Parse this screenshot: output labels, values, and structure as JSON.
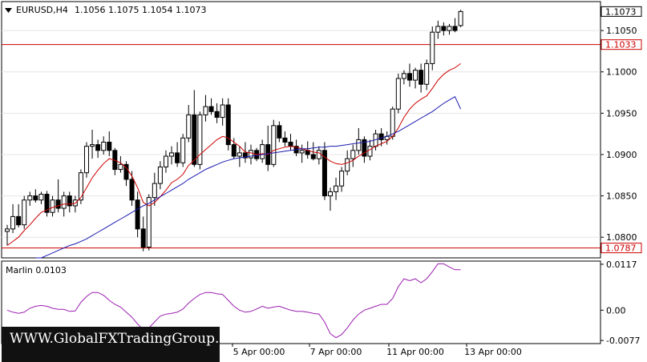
{
  "header": {
    "symbol": "EURUSD,H4",
    "ohlc": "1.1056 1.1075 1.1054 1.1073",
    "menu_icon": "triangle-down-icon"
  },
  "indicator": {
    "label": "Marlin 0.0103"
  },
  "watermark": {
    "text": "WWW.GlobalFXTradingGroup.Com"
  },
  "colors": {
    "background": "#ffffff",
    "candle": "#000000",
    "fast_ma": "#cc0000",
    "slow_ma": "#1a1ab0",
    "oscillator": "#9b1fb0",
    "level_line": "#cc0000",
    "grid": "#e4e4e4"
  },
  "chart_data": [
    {
      "type": "candlestick",
      "title": "EURUSD,H4",
      "ylim": [
        1.0775,
        1.1085
      ],
      "y_ticks": [
        "1.1050",
        "1.1000",
        "1.0950",
        "1.0900",
        "1.0850",
        "1.0800"
      ],
      "x_ticks": [
        "5 Apr 00:00",
        "7 Apr 00:00",
        "11 Apr 00:00",
        "13 Apr 00:00"
      ],
      "price_label": "1.1073",
      "levels": [
        {
          "value": 1.1033,
          "label": "1.1033"
        },
        {
          "value": 1.0787,
          "label": "1.0787"
        }
      ],
      "candles": [
        [
          1.0807,
          1.0815,
          1.079,
          1.081
        ],
        [
          1.081,
          1.084,
          1.0805,
          1.0825
        ],
        [
          1.0825,
          1.084,
          1.0812,
          1.0815
        ],
        [
          1.0815,
          1.085,
          1.081,
          1.0845
        ],
        [
          1.0845,
          1.0855,
          1.0838,
          1.085
        ],
        [
          1.085,
          1.0858,
          1.0842,
          1.0845
        ],
        [
          1.0845,
          1.0855,
          1.084,
          1.0852
        ],
        [
          1.0852,
          1.0856,
          1.0825,
          1.083
        ],
        [
          1.083,
          1.085,
          1.0825,
          1.0845
        ],
        [
          1.0845,
          1.087,
          1.083,
          1.0835
        ],
        [
          1.0835,
          1.0855,
          1.0825,
          1.085
        ],
        [
          1.085,
          1.0855,
          1.083,
          1.0838
        ],
        [
          1.0838,
          1.085,
          1.083,
          1.0845
        ],
        [
          1.0845,
          1.0882,
          1.084,
          1.0878
        ],
        [
          1.0878,
          1.0915,
          1.0872,
          1.091
        ],
        [
          1.091,
          1.093,
          1.0895,
          1.0912
        ],
        [
          1.0912,
          1.0918,
          1.0896,
          1.0905
        ],
        [
          1.0905,
          1.0922,
          1.09,
          1.0915
        ],
        [
          1.0915,
          1.0928,
          1.0898,
          1.0905
        ],
        [
          1.0905,
          1.0908,
          1.0875,
          1.0882
        ],
        [
          1.0882,
          1.0898,
          1.0878,
          1.0888
        ],
        [
          1.0888,
          1.0892,
          1.0862,
          1.087
        ],
        [
          1.087,
          1.088,
          1.0838,
          1.0845
        ],
        [
          1.0845,
          1.0855,
          1.08,
          1.081
        ],
        [
          1.081,
          1.0825,
          1.0783,
          1.0788
        ],
        [
          1.0788,
          1.0852,
          1.0784,
          1.0848
        ],
        [
          1.0848,
          1.0878,
          1.0838,
          1.0865
        ],
        [
          1.0865,
          1.0892,
          1.0858,
          1.0885
        ],
        [
          1.0885,
          1.0905,
          1.0878,
          1.0898
        ],
        [
          1.0898,
          1.091,
          1.0888,
          1.0902
        ],
        [
          1.0902,
          1.0915,
          1.0885,
          1.089
        ],
        [
          1.089,
          1.0925,
          1.0885,
          1.092
        ],
        [
          1.092,
          1.096,
          1.0915,
          1.0948
        ],
        [
          1.0948,
          1.0978,
          1.0885,
          1.0888
        ],
        [
          1.0888,
          1.0952,
          1.0882,
          1.0948
        ],
        [
          1.0948,
          1.0972,
          1.094,
          1.0958
        ],
        [
          1.0958,
          1.0968,
          1.0948,
          1.0952
        ],
        [
          1.0952,
          1.0962,
          1.0938,
          1.0945
        ],
        [
          1.0945,
          1.0968,
          1.0935,
          1.096
        ],
        [
          1.096,
          1.0968,
          1.0905,
          1.0912
        ],
        [
          1.0912,
          1.092,
          1.0895,
          1.0898
        ],
        [
          1.0898,
          1.091,
          1.0885,
          1.0902
        ],
        [
          1.0902,
          1.0915,
          1.089,
          1.0896
        ],
        [
          1.0896,
          1.0912,
          1.0888,
          1.0905
        ],
        [
          1.0905,
          1.0908,
          1.0892,
          1.0895
        ],
        [
          1.0895,
          1.0918,
          1.089,
          1.0912
        ],
        [
          1.0912,
          1.0935,
          1.088,
          1.0888
        ],
        [
          1.0888,
          1.0942,
          1.0885,
          1.0935
        ],
        [
          1.0935,
          1.094,
          1.0915,
          1.092
        ],
        [
          1.092,
          1.0928,
          1.091,
          1.0915
        ],
        [
          1.0915,
          1.0925,
          1.0905,
          1.091
        ],
        [
          1.091,
          1.0918,
          1.0898,
          1.0902
        ],
        [
          1.0902,
          1.0912,
          1.089,
          1.0905
        ],
        [
          1.0905,
          1.0916,
          1.0895,
          1.09
        ],
        [
          1.09,
          1.0915,
          1.0893,
          1.0895
        ],
        [
          1.0895,
          1.091,
          1.0888,
          1.0905
        ],
        [
          1.0905,
          1.0915,
          1.0845,
          1.085
        ],
        [
          1.085,
          1.086,
          1.0832,
          1.0855
        ],
        [
          1.0855,
          1.0872,
          1.0845,
          1.0862
        ],
        [
          1.0862,
          1.0885,
          1.0855,
          1.088
        ],
        [
          1.088,
          1.0905,
          1.0875,
          1.0895
        ],
        [
          1.0895,
          1.0912,
          1.0885,
          1.0905
        ],
        [
          1.0905,
          1.0932,
          1.09,
          1.0918
        ],
        [
          1.0918,
          1.0922,
          1.089,
          1.0898
        ],
        [
          1.0898,
          1.0918,
          1.0893,
          1.091
        ],
        [
          1.091,
          1.093,
          1.0905,
          1.0925
        ],
        [
          1.0925,
          1.0932,
          1.091,
          1.0918
        ],
        [
          1.0918,
          1.0928,
          1.0912,
          1.0922
        ],
        [
          1.0922,
          1.0958,
          1.0918,
          1.0955
        ],
        [
          1.0955,
          1.0998,
          1.095,
          1.0992
        ],
        [
          1.0992,
          1.1002,
          1.0985,
          1.0998
        ],
        [
          1.0998,
          1.101,
          1.0982,
          1.099
        ],
        [
          1.099,
          1.1005,
          1.098,
          1.1002
        ],
        [
          1.1002,
          1.101,
          1.0975,
          1.0985
        ],
        [
          1.0985,
          1.1015,
          1.0978,
          1.101
        ],
        [
          1.101,
          1.1055,
          1.1002,
          1.1048
        ],
        [
          1.1048,
          1.1062,
          1.104,
          1.1055
        ],
        [
          1.1055,
          1.106,
          1.1044,
          1.105
        ],
        [
          1.105,
          1.1058,
          1.1045,
          1.1055
        ],
        [
          1.1055,
          1.1065,
          1.1048,
          1.105
        ],
        [
          1.1056,
          1.1075,
          1.1054,
          1.1073
        ]
      ],
      "series": [
        {
          "name": "",
          "kind": "fast_ma",
          "color": "#cc0000",
          "values": [
            1.079,
            1.0795,
            1.08,
            1.0808,
            1.0815,
            1.0823,
            1.083,
            1.0833,
            1.0836,
            1.0838,
            1.084,
            1.084,
            1.0841,
            1.0848,
            1.086,
            1.0872,
            1.0881,
            1.0889,
            1.0895,
            1.0893,
            1.089,
            1.0884,
            1.0874,
            1.086,
            1.0842,
            1.0838,
            1.0842,
            1.0849,
            1.0857,
            1.0866,
            1.087,
            1.0876,
            1.0887,
            1.0893,
            1.09,
            1.0906,
            1.0912,
            1.0918,
            1.0922,
            1.092,
            1.0915,
            1.091,
            1.0903,
            1.0902,
            1.09,
            1.0901,
            1.09,
            1.0905,
            1.0907,
            1.0909,
            1.091,
            1.0909,
            1.0907,
            1.0905,
            1.0903,
            1.0902,
            1.0897,
            1.0892,
            1.0889,
            1.0888,
            1.089,
            1.0893,
            1.0898,
            1.0902,
            1.0906,
            1.091,
            1.0913,
            1.0916,
            1.0922,
            1.0932,
            1.0945,
            1.0955,
            1.0962,
            1.0967,
            1.0971,
            1.098,
            1.099,
            1.0997,
            1.1002,
            1.1005,
            1.101
          ]
        },
        {
          "name": "",
          "kind": "slow_ma",
          "color": "#1a1ab0",
          "values": [
            null,
            null,
            null,
            null,
            null,
            1.0772,
            1.0775,
            1.0778,
            1.0781,
            1.0784,
            1.0787,
            1.079,
            1.0792,
            1.0795,
            1.0798,
            1.0802,
            1.0806,
            1.081,
            1.0814,
            1.0818,
            1.0822,
            1.0826,
            1.083,
            1.0834,
            1.0838,
            1.0841,
            1.0845,
            1.0849,
            1.0853,
            1.0857,
            1.0861,
            1.0865,
            1.087,
            1.0874,
            1.0878,
            1.0882,
            1.0885,
            1.0888,
            1.0891,
            1.0893,
            1.0895,
            1.0896,
            1.0897,
            1.0898,
            1.0899,
            1.09,
            1.0901,
            1.0902,
            1.0903,
            1.0904,
            1.0905,
            1.0906,
            1.0907,
            1.0907,
            1.0908,
            1.0909,
            1.0909,
            1.091,
            1.091,
            1.0911,
            1.0912,
            1.0913,
            1.0914,
            1.0915,
            1.0916,
            1.0918,
            1.092,
            1.0922,
            1.0925,
            1.0928,
            1.0932,
            1.0936,
            1.094,
            1.0944,
            1.0948,
            1.0952,
            1.0957,
            1.0962,
            1.0966,
            1.097,
            1.0955
          ]
        }
      ]
    },
    {
      "type": "line",
      "title": "Marlin 0.0103",
      "ylim": [
        -0.0085,
        0.0125
      ],
      "y_ticks": [
        "0.0117",
        "0.00",
        "-0.0077"
      ],
      "series": [
        {
          "name": "",
          "color": "#9b1fb0",
          "values": [
            0.0,
            -0.0005,
            -0.0008,
            -0.0005,
            0.0005,
            0.001,
            0.0012,
            0.001,
            0.0005,
            0.0002,
            0.0002,
            -0.0003,
            -0.0002,
            0.002,
            0.0035,
            0.0045,
            0.0045,
            0.0038,
            0.0025,
            0.0015,
            0.0008,
            -0.0005,
            -0.0018,
            -0.0035,
            -0.005,
            -0.0045,
            -0.003,
            -0.0015,
            -0.001,
            -0.0008,
            -0.0005,
            0.0003,
            0.0018,
            0.003,
            0.004,
            0.0045,
            0.0045,
            0.0042,
            0.004,
            0.0025,
            0.001,
            0.0,
            -0.0005,
            -0.0003,
            0.0003,
            0.001,
            0.0005,
            0.0008,
            0.001,
            0.0005,
            0.0,
            -0.0003,
            -0.0003,
            -0.0005,
            -0.0008,
            -0.001,
            -0.003,
            -0.006,
            -0.007,
            -0.0062,
            -0.0045,
            -0.0025,
            -0.001,
            0.0,
            0.0005,
            0.001,
            0.0015,
            0.0015,
            0.003,
            0.006,
            0.008,
            0.0075,
            0.008,
            0.007,
            0.008,
            0.0098,
            0.0118,
            0.0118,
            0.011,
            0.0103,
            0.0103
          ]
        }
      ]
    }
  ]
}
